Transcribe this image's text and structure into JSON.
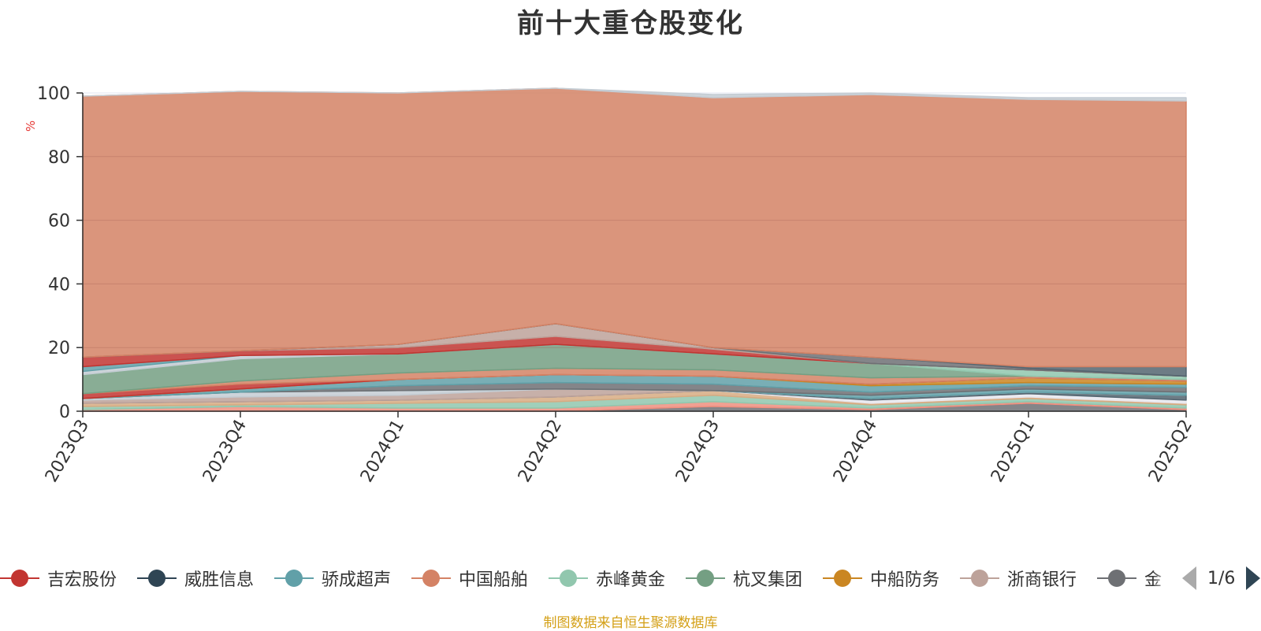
{
  "chart_data": {
    "type": "area",
    "title": "前十大重仓股变化",
    "ylabel": "%",
    "ylim": [
      0,
      100
    ],
    "yticks": [
      0,
      20,
      40,
      60,
      80,
      100
    ],
    "categories": [
      "2023Q3",
      "2023Q4",
      "2024Q1",
      "2024Q2",
      "2024Q3",
      "2024Q4",
      "2025Q1",
      "2025Q2"
    ],
    "stacked": true,
    "grid": true,
    "series": [
      {
        "color": "#6e7074",
        "values": [
          0,
          0,
          0,
          0,
          1.5,
          0.5,
          2.5,
          0.5
        ]
      },
      {
        "color": "#ef8f7f",
        "values": [
          0.5,
          1.5,
          1.0,
          1.0,
          1.5,
          0.5,
          0.5,
          0.5
        ]
      },
      {
        "color": "#91c7ae",
        "values": [
          1.0,
          0.5,
          1.5,
          2.0,
          2.0,
          1.0,
          1.0,
          1.0
        ]
      },
      {
        "color": "#d7ab82",
        "values": [
          1.0,
          1.0,
          1.0,
          1.5,
          1.5,
          0.5,
          0.5,
          0.5
        ]
      },
      {
        "color": "#e7e7ee",
        "values": [
          0,
          0,
          0,
          0,
          0,
          1.0,
          1.0,
          1.0
        ]
      },
      {
        "color": "#546570",
        "values": [
          0,
          0,
          0,
          0,
          0,
          0.5,
          0.5,
          1.5
        ]
      },
      {
        "color": "#bda29a",
        "values": [
          1.0,
          1.5,
          1.5,
          2.5,
          0,
          0,
          0,
          0
        ]
      },
      {
        "color": "#c4ccd3",
        "values": [
          0.5,
          1.5,
          1.5,
          0,
          0,
          0,
          0,
          0
        ]
      },
      {
        "color": "#61a0a8",
        "values": [
          0,
          0,
          0,
          0,
          0,
          1.0,
          1.0,
          1.0
        ]
      },
      {
        "color": "#6e7074",
        "values": [
          0,
          0,
          1.5,
          2.0,
          2.0,
          1.0,
          1.0,
          1.5
        ]
      },
      {
        "color": "#61a0a8",
        "values": [
          0,
          1.0,
          2.0,
          2.5,
          2.5,
          2.0,
          1.0,
          1.0
        ]
      },
      {
        "color": "#ca8622",
        "values": [
          0,
          0,
          0,
          0,
          0,
          0.5,
          1.5,
          1.0
        ]
      },
      {
        "color": "#c23531",
        "values": [
          1.5,
          1.5,
          0,
          0,
          0,
          0,
          0,
          0
        ]
      },
      {
        "color": "#d48265",
        "values": [
          0,
          1.0,
          2.0,
          2.0,
          2.0,
          2.0,
          0.5,
          0.5
        ]
      },
      {
        "color": "#749f83",
        "values": [
          6.0,
          7.0,
          6.0,
          7.5,
          5.0,
          4.5,
          0,
          0
        ]
      },
      {
        "color": "#91c7ae",
        "values": [
          0,
          0,
          0,
          0,
          0,
          0,
          2.0,
          1.0
        ]
      },
      {
        "color": "#c4ccd3",
        "values": [
          1.0,
          1.0,
          0,
          0,
          0,
          0,
          0,
          0
        ]
      },
      {
        "color": "#61a0a8",
        "values": [
          1.5,
          0,
          0,
          0,
          0,
          0,
          0,
          0
        ]
      },
      {
        "color": "#c23531",
        "values": [
          3.0,
          1.5,
          2.0,
          2.5,
          1.5,
          0,
          0,
          0
        ]
      },
      {
        "color": "#bda29a",
        "values": [
          0,
          0,
          1.0,
          4.0,
          0.5,
          0,
          0,
          0
        ]
      },
      {
        "color": "#6e7074",
        "values": [
          0,
          0,
          0,
          0,
          0,
          2.0,
          0.5,
          0
        ]
      },
      {
        "color": "#546570",
        "values": [
          0,
          0,
          0,
          0,
          0,
          0,
          0.5,
          3.0
        ]
      },
      {
        "color": "#d48265",
        "values": [
          82.0,
          81.5,
          79.0,
          74.0,
          78.5,
          82.5,
          84.0,
          83.5
        ]
      },
      {
        "color": "#c4ccd3",
        "values": [
          0,
          0,
          0,
          0,
          1.0,
          0.5,
          0.5,
          1.0
        ]
      }
    ]
  },
  "legend": {
    "items": [
      {
        "label": "吉宏股份",
        "color": "#c23531"
      },
      {
        "label": "威胜信息",
        "color": "#2f4554"
      },
      {
        "label": "骄成超声",
        "color": "#61a0a8"
      },
      {
        "label": "中国船舶",
        "color": "#d48265"
      },
      {
        "label": "赤峰黄金",
        "color": "#91c7ae"
      },
      {
        "label": "杭叉集团",
        "color": "#749f83"
      },
      {
        "label": "中船防务",
        "color": "#ca8622"
      },
      {
        "label": "浙商银行",
        "color": "#bda29a"
      },
      {
        "label": "金",
        "color": "#6e7074"
      }
    ],
    "page_text": "1/6"
  },
  "source_note": "制图数据来自恒生聚源数据库"
}
